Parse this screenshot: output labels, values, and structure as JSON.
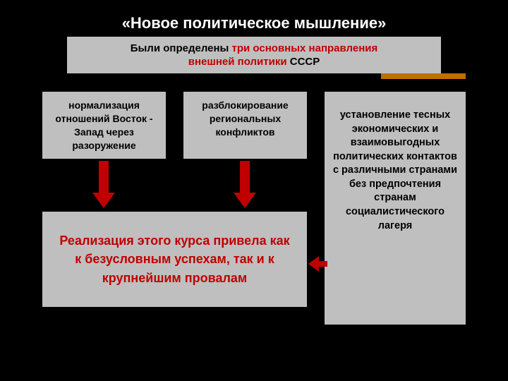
{
  "colors": {
    "background": "#000000",
    "box_bg": "#bfbfbf",
    "title_text": "#ffffff",
    "body_text": "#000000",
    "accent_red": "#c00000",
    "accent_bar": "#c07000"
  },
  "typography": {
    "title_fontsize": 22,
    "intro_fontsize": 15,
    "box_fontsize": 14,
    "result_fontsize": 18,
    "font_family": "Arial",
    "weight": "bold"
  },
  "layout": {
    "slide_width": 720,
    "slide_height": 540
  },
  "title": "«Новое политическое мышление»",
  "intro": {
    "prefix": "Были определены ",
    "red1": "три основных направления",
    "red2": "внешней политики ",
    "black_tail": "СССР"
  },
  "boxes": {
    "b1": "нормализация отношений Восток - Запад через разоружение",
    "b2": "разблокирование региональных конфликтов",
    "b3": "установление тесных экономических и взаимовыгодных политических контактов с различными странами без предпочтения странам социалистического лагеря"
  },
  "result": "Реализация этого курса привела как к безусловным успехам, так и к крупнейшим провалам",
  "diagram": {
    "type": "flowchart",
    "nodes": [
      {
        "id": "intro",
        "label_ref": "intro"
      },
      {
        "id": "b1",
        "label_ref": "boxes.b1"
      },
      {
        "id": "b2",
        "label_ref": "boxes.b2"
      },
      {
        "id": "b3",
        "label_ref": "boxes.b3"
      },
      {
        "id": "result",
        "label_ref": "result"
      }
    ],
    "edges": [
      {
        "from": "b1",
        "to": "result",
        "color": "#c00000",
        "direction": "down"
      },
      {
        "from": "b2",
        "to": "result",
        "color": "#c00000",
        "direction": "down"
      },
      {
        "from": "b3",
        "to": "result",
        "color": "#c00000",
        "direction": "left"
      }
    ]
  }
}
